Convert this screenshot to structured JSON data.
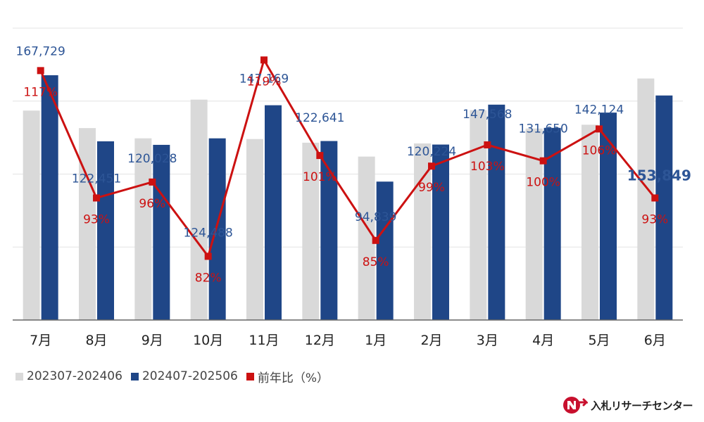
{
  "chart_data": {
    "type": "bar",
    "categories": [
      "7月",
      "8月",
      "9月",
      "10月",
      "11月",
      "12月",
      "1月",
      "2月",
      "3月",
      "4月",
      "5月",
      "6月"
    ],
    "series": [
      {
        "name": "202307-202406",
        "type": "bar",
        "color": "#d9d9d9",
        "values": [
          143500,
          131500,
          124500,
          151000,
          124000,
          121500,
          112000,
          121000,
          143800,
          131200,
          133800,
          165500
        ]
      },
      {
        "name": "202407-202506",
        "type": "bar",
        "color": "#1f4687",
        "values": [
          167729,
          122451,
          120028,
          124488,
          147169,
          122641,
          94839,
          120224,
          147568,
          131650,
          142124,
          153849
        ]
      },
      {
        "name": "前年比（%）",
        "type": "line",
        "color": "#cc1111",
        "values": [
          117,
          93,
          96,
          82,
          119,
          101,
          85,
          99,
          103,
          100,
          106,
          93
        ]
      }
    ],
    "bar_labels": [
      "167,729",
      "122,451",
      "120,028",
      "124,488",
      "147,169",
      "122,641",
      "94,839",
      "120,224",
      "147,568",
      "131,650",
      "142,124",
      "153,849"
    ],
    "pct_labels": [
      "117%",
      "93%",
      "96%",
      "82%",
      "119%",
      "101%",
      "85%",
      "99%",
      "103%",
      "100%",
      "106%",
      "93%"
    ],
    "ylim_bars": [
      0,
      200000
    ],
    "ylim_pct": [
      70,
      125
    ],
    "grid": true,
    "legend_position": "bottom-left"
  },
  "legend": {
    "prev_label": "202307-202406",
    "curr_label": "202407-202506",
    "ratio_label": "前年比（%）"
  },
  "logo": {
    "text": "入札リサーチセンター"
  },
  "colors": {
    "prev": "#d9d9d9",
    "curr": "#1f4687",
    "ratio": "#cc1111",
    "label": "#2d5596"
  }
}
